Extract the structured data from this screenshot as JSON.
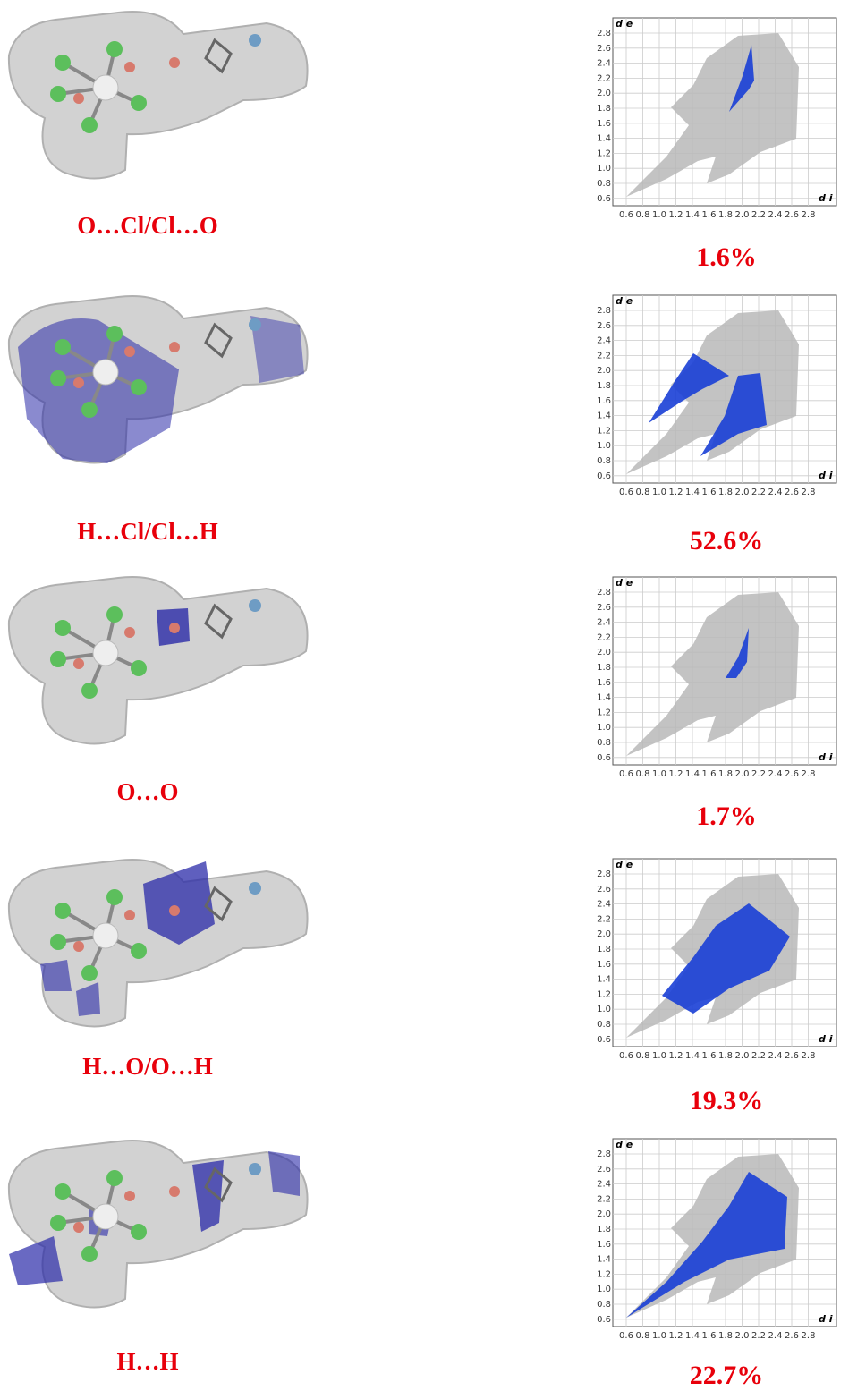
{
  "axes": {
    "y_label": "d e",
    "x_label": "d i",
    "yticks": [
      "2.8",
      "2.6",
      "2.4",
      "2.2",
      "2.0",
      "1.8",
      "1.6",
      "1.4",
      "1.2",
      "1.0",
      "0.8",
      "0.6"
    ],
    "xticks": [
      "0.6",
      "0.8",
      "1.0",
      "1.2",
      "1.4",
      "1.6",
      "1.8",
      "2.0",
      "2.2",
      "2.4",
      "2.6",
      "2.8"
    ]
  },
  "panels": [
    {
      "contact": "O…Cl/Cl…O",
      "percentage": "1.6%"
    },
    {
      "contact": "H…Cl/Cl…H",
      "percentage": "52.6%"
    },
    {
      "contact": "O…O",
      "percentage": "1.7%"
    },
    {
      "contact": "H…O/O…H",
      "percentage": "19.3%"
    },
    {
      "contact": "H…H",
      "percentage": "22.7%"
    }
  ]
}
